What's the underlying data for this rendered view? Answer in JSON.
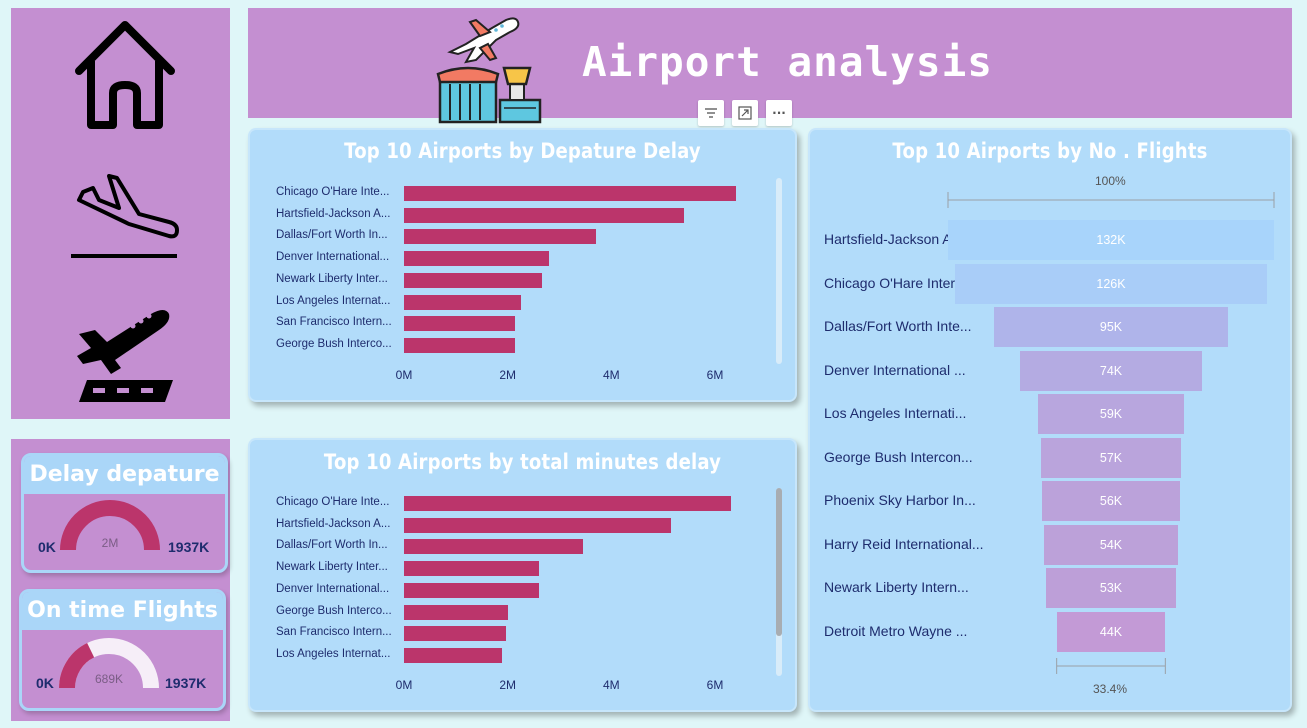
{
  "header": {
    "title": "Airport analysis"
  },
  "nav": {
    "items": [
      {
        "name": "home",
        "icon": "home-icon"
      },
      {
        "name": "arrivals",
        "icon": "plane-landing-icon"
      },
      {
        "name": "departures",
        "icon": "plane-takeoff-icon"
      }
    ]
  },
  "visual_toolbar": {
    "filter": "filter-icon",
    "focus": "focus-mode-icon",
    "more": "more-options-icon",
    "more_label": "···"
  },
  "kpis": [
    {
      "title": "Delay depature",
      "min": "0K",
      "max": "1937K",
      "value_label": "2M",
      "fill_fraction": 1.0
    },
    {
      "title": "On time Flights",
      "min": "0K",
      "max": "1937K",
      "value_label": "689K",
      "fill_fraction": 0.356
    }
  ],
  "colors": {
    "bar": "#bb356b",
    "panel_pink": "#c48fd1",
    "card_blue": "#b2dcfa"
  },
  "chart_data": [
    {
      "type": "bar",
      "orientation": "horizontal",
      "title": "Top 10 Airports by Depature Delay",
      "categories": [
        "Chicago O'Hare Inte...",
        "Hartsfield-Jackson A...",
        "Dallas/Fort Worth In...",
        "Denver International...",
        "Newark Liberty Inter...",
        "Los Angeles Internat...",
        "San Francisco Intern...",
        "George Bush Interco..."
      ],
      "values": [
        6.4,
        5.4,
        3.7,
        2.8,
        2.67,
        2.25,
        2.15,
        2.15
      ],
      "ticks": [
        "0M",
        "2M",
        "4M",
        "6M"
      ],
      "xlim": [
        0,
        7
      ]
    },
    {
      "type": "bar",
      "orientation": "horizontal",
      "title": "Top 10 Airports by total minutes delay",
      "categories": [
        "Chicago O'Hare Inte...",
        "Hartsfield-Jackson A...",
        "Dallas/Fort Worth In...",
        "Newark Liberty Inter...",
        "Denver International...",
        "George Bush Interco...",
        "San Francisco Intern...",
        "Los Angeles Internat..."
      ],
      "values": [
        6.3,
        5.15,
        3.45,
        2.6,
        2.6,
        2.0,
        1.97,
        1.9
      ],
      "ticks": [
        "0M",
        "2M",
        "4M",
        "6M"
      ],
      "xlim": [
        0,
        7
      ]
    },
    {
      "type": "funnel",
      "title": "Top 10 Airports by No . Flights",
      "top_label": "100%",
      "bottom_label": "33.4%",
      "categories": [
        "Hartsfield-Jackson Atl...",
        "Chicago O'Hare Inter...",
        "Dallas/Fort Worth Inte...",
        "Denver International ...",
        "Los Angeles Internati...",
        "George Bush Intercon...",
        "Phoenix Sky Harbor In...",
        "Harry Reid International...",
        "Newark Liberty Intern...",
        "Detroit Metro Wayne ..."
      ],
      "values": [
        132,
        126,
        95,
        74,
        59,
        57,
        56,
        54,
        53,
        44
      ],
      "value_labels": [
        "132K",
        "126K",
        "95K",
        "74K",
        "59K",
        "57K",
        "56K",
        "54K",
        "53K",
        "44K"
      ]
    }
  ]
}
